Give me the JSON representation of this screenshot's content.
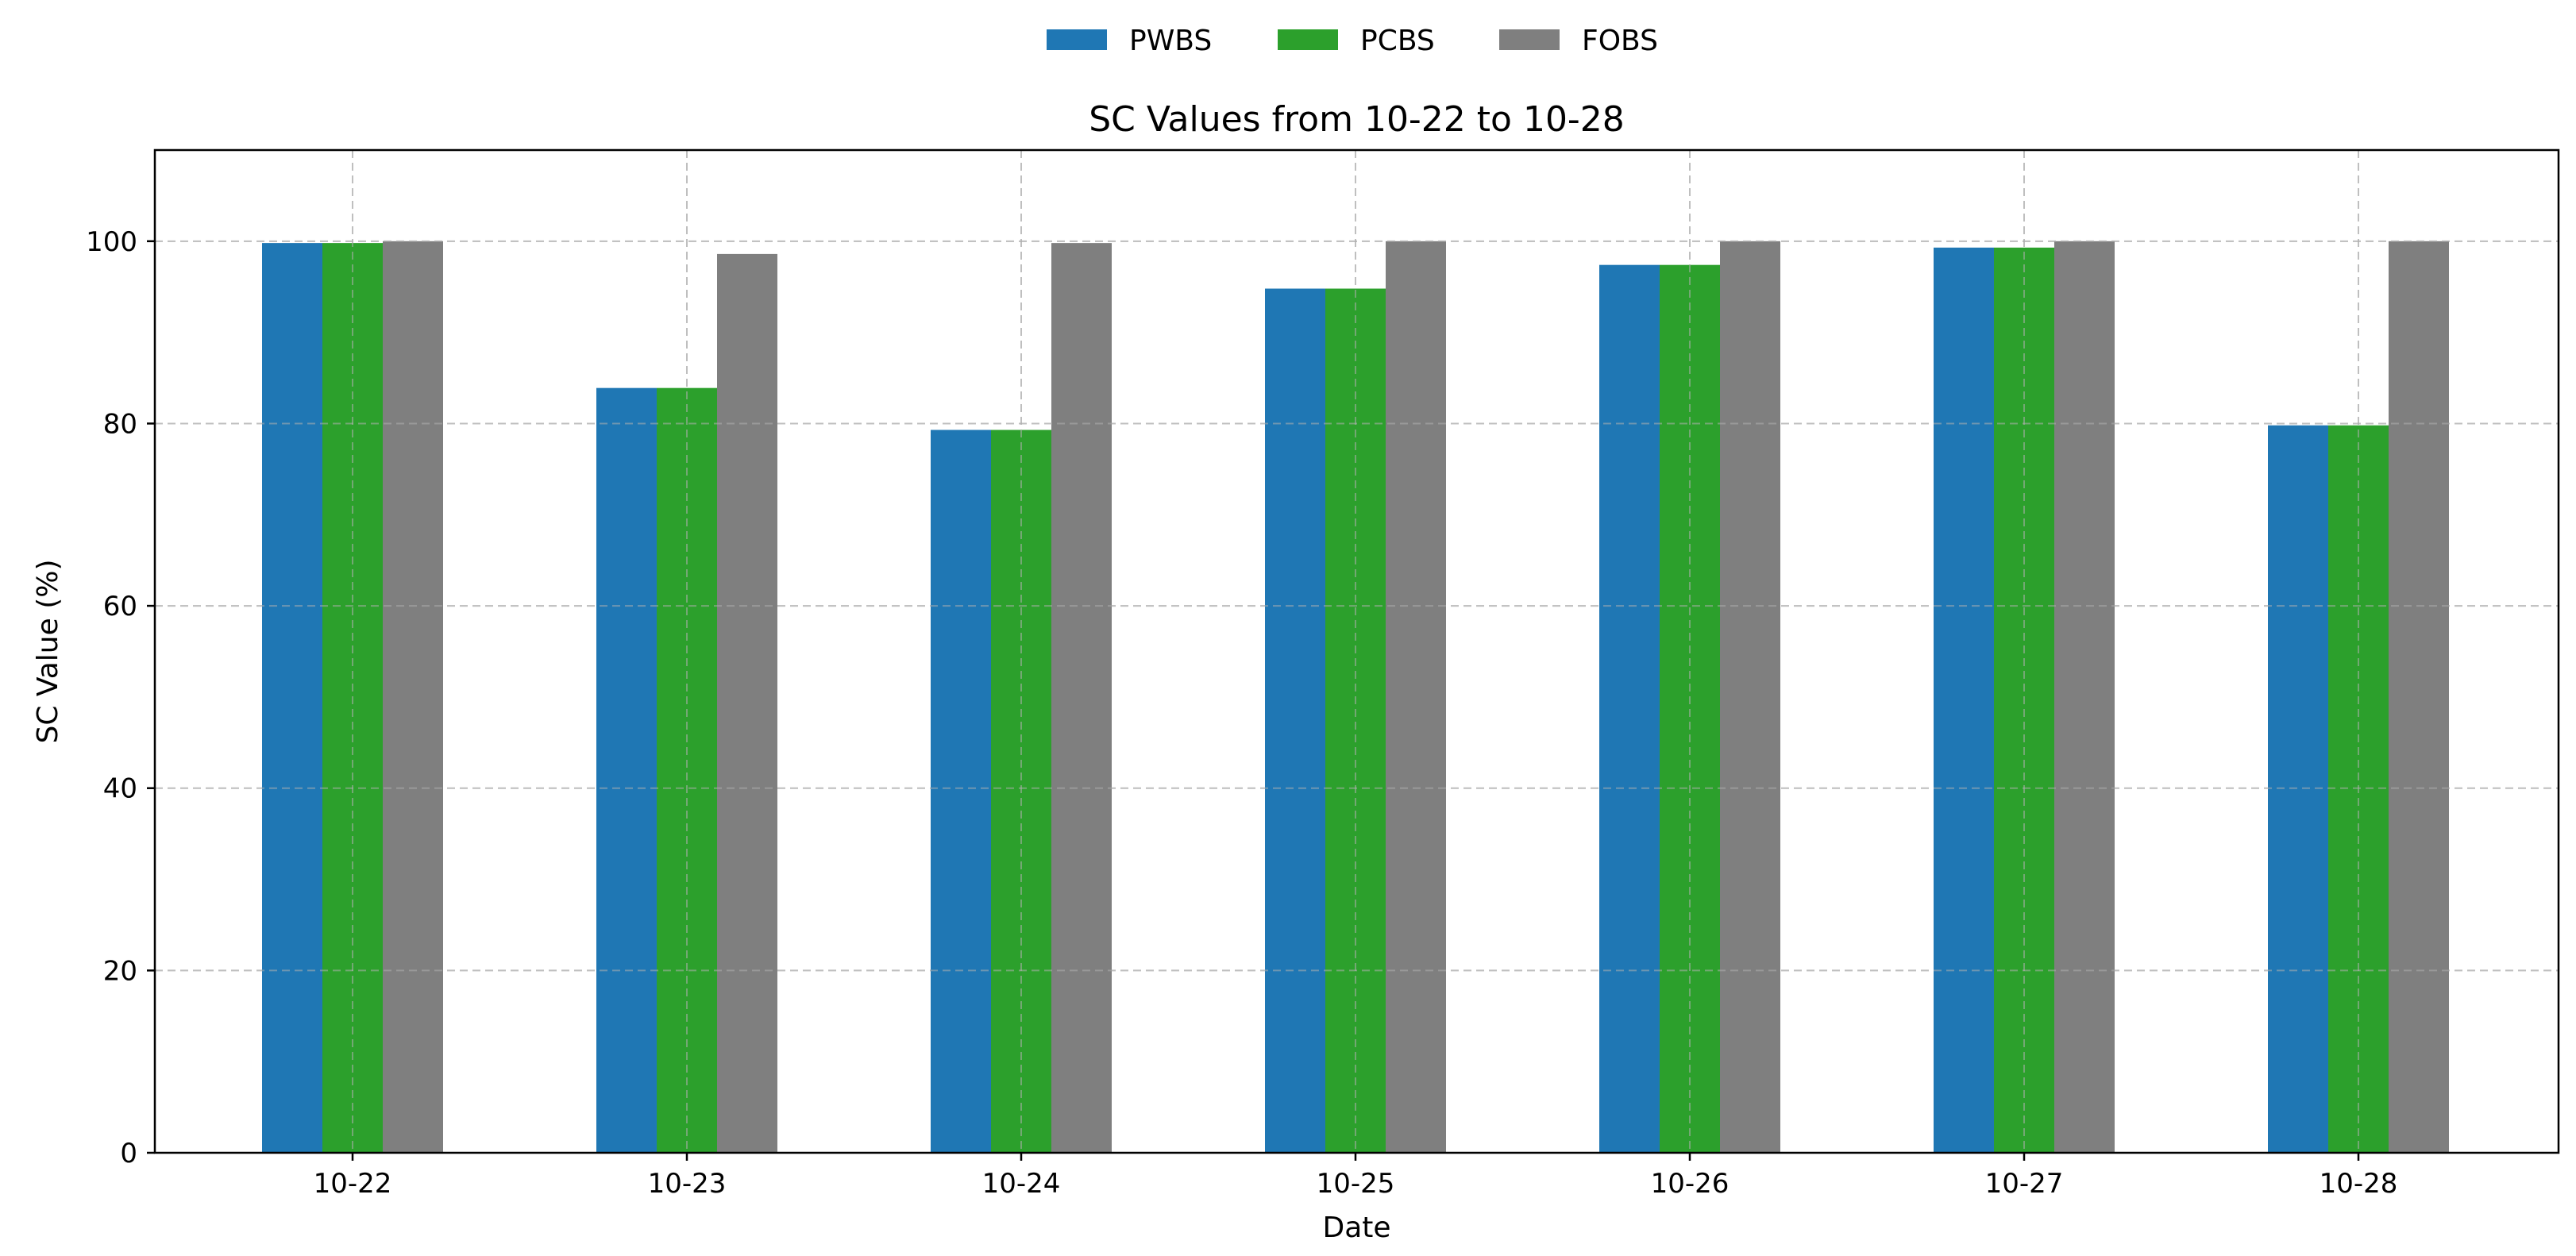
{
  "chart_data": {
    "type": "bar",
    "title": "SC Values from 10-22 to 10-28",
    "xlabel": "Date",
    "ylabel": "SC Value (%)",
    "categories": [
      "10-22",
      "10-23",
      "10-24",
      "10-25",
      "10-26",
      "10-27",
      "10-28"
    ],
    "series": [
      {
        "name": "PWBS",
        "color": "#1f77b4",
        "values": [
          99.8,
          83.9,
          79.3,
          94.8,
          97.4,
          99.3,
          79.8
        ]
      },
      {
        "name": "PCBS",
        "color": "#2ca02c",
        "values": [
          99.8,
          83.9,
          79.3,
          94.8,
          97.4,
          99.3,
          79.8
        ]
      },
      {
        "name": "FOBS",
        "color": "#7f7f7f",
        "values": [
          100.0,
          98.6,
          99.8,
          100.0,
          100.0,
          100.0,
          100.0
        ]
      }
    ],
    "ylim": [
      0,
      110
    ],
    "yticks": [
      0,
      20,
      40,
      60,
      80,
      100
    ],
    "grid": true,
    "legend": "top-center"
  }
}
